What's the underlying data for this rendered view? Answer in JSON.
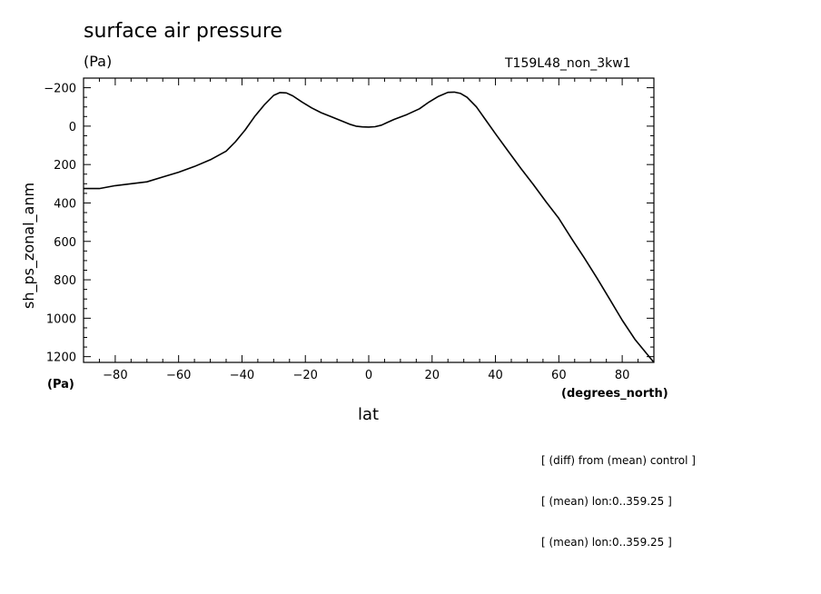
{
  "title": "surface air pressure",
  "units_label_top": "(Pa)",
  "units_label_bottom": "(Pa)",
  "run_name": "T159L48_non_3kw1",
  "notes": [
    "[ (diff) from (mean) control ]",
    "[ (mean) lon:0..359.25 ]",
    "[ (mean) lon:0..359.25 ]"
  ],
  "chart_data": {
    "type": "line",
    "ylabel": "sh_ps_zonal_anm",
    "xlabel": "lat",
    "xunits": "(degrees_north)",
    "xlim": [
      -90,
      90
    ],
    "ylim": [
      -250,
      1230
    ],
    "y_inverted": true,
    "xticks": [
      -80,
      -60,
      -40,
      -20,
      0,
      20,
      40,
      60,
      80
    ],
    "yticks": [
      -200,
      0,
      200,
      400,
      600,
      800,
      1000,
      1200
    ],
    "xtick_labels": [
      "−80",
      "−60",
      "−40",
      "−20",
      "0",
      "20",
      "40",
      "60",
      "80"
    ],
    "ytick_labels": [
      "−200",
      "0",
      "200",
      "400",
      "600",
      "800",
      "1000",
      "1200"
    ],
    "grid": false,
    "series": [
      {
        "x": [
          -90,
          -85,
          -80,
          -75,
          -70,
          -65,
          -60,
          -55,
          -50,
          -45,
          -42,
          -39,
          -36,
          -33,
          -30,
          -28,
          -26,
          -24,
          -21,
          -18,
          -15,
          -12,
          -9,
          -6,
          -4,
          -2,
          0,
          2,
          4,
          6,
          8,
          12,
          16,
          19,
          22,
          25,
          27,
          29,
          31,
          34,
          37,
          40,
          44,
          48,
          52,
          56,
          60,
          64,
          68,
          72,
          76,
          80,
          84,
          88,
          90
        ],
        "y": [
          325,
          325,
          310,
          300,
          290,
          265,
          240,
          210,
          175,
          130,
          80,
          20,
          -50,
          -110,
          -160,
          -175,
          -173,
          -158,
          -125,
          -95,
          -70,
          -50,
          -30,
          -10,
          0,
          4,
          5,
          3,
          -5,
          -20,
          -35,
          -60,
          -90,
          -125,
          -155,
          -176,
          -177,
          -170,
          -150,
          -100,
          -30,
          40,
          130,
          220,
          305,
          395,
          480,
          585,
          685,
          790,
          900,
          1010,
          1110,
          1190,
          1235
        ]
      }
    ]
  }
}
